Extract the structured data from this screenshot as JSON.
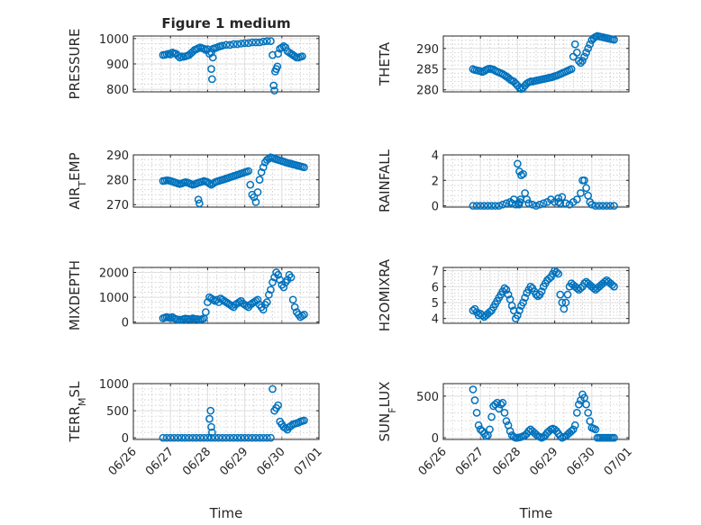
{
  "figure_title": "Figure 1 medium",
  "x_axis_label": "Time",
  "chart_data": [
    {
      "type": "scatter",
      "ylabel": "PRESSURE",
      "ylabel_sub": "",
      "ylabel_tail": "",
      "ylim": [
        790,
        1010
      ],
      "yticks": [
        800,
        900,
        1000
      ],
      "xlim": [
        0,
        5
      ],
      "xticks": [
        "06/26",
        "06/27",
        "06/28",
        "06/29",
        "06/30",
        "07/01"
      ],
      "grid": true,
      "x": [
        0.8,
        0.85,
        0.9,
        0.95,
        1.0,
        1.05,
        1.1,
        1.15,
        1.2,
        1.25,
        1.3,
        1.35,
        1.4,
        1.45,
        1.5,
        1.55,
        1.6,
        1.65,
        1.7,
        1.75,
        1.8,
        1.85,
        1.9,
        1.95,
        2.0,
        2.05,
        2.1,
        2.15,
        2.2,
        2.25,
        2.3,
        2.35,
        2.4,
        2.5,
        2.6,
        2.7,
        2.8,
        2.9,
        3.0,
        3.1,
        3.2,
        3.3,
        3.4,
        3.5,
        3.6,
        3.7,
        3.75,
        3.78,
        3.8,
        3.82,
        3.85,
        3.88,
        3.9,
        3.95,
        4.0,
        4.05,
        4.1,
        4.15,
        4.2,
        4.25,
        4.3,
        4.35,
        4.4,
        4.45,
        4.5,
        4.55,
        2.1,
        2.12,
        2.14
      ],
      "y": [
        935,
        936,
        938,
        940,
        937,
        945,
        942,
        940,
        932,
        925,
        930,
        928,
        930,
        932,
        935,
        942,
        948,
        955,
        958,
        962,
        965,
        962,
        960,
        955,
        958,
        940,
        945,
        960,
        962,
        965,
        968,
        970,
        972,
        975,
        975,
        978,
        978,
        980,
        982,
        982,
        985,
        985,
        985,
        988,
        990,
        990,
        935,
        815,
        795,
        870,
        880,
        890,
        940,
        960,
        965,
        970,
        965,
        950,
        945,
        940,
        935,
        930,
        925,
        925,
        928,
        930,
        880,
        840,
        925
      ],
      "title": "Figure 1 medium"
    },
    {
      "type": "scatter",
      "ylabel": "THETA",
      "ylabel_sub": "",
      "ylabel_tail": "",
      "ylim": [
        279.5,
        293
      ],
      "yticks": [
        280,
        285,
        290
      ],
      "xlim": [
        0,
        5
      ],
      "xticks": [
        "06/26",
        "06/27",
        "06/28",
        "06/29",
        "06/30",
        "07/01"
      ],
      "grid": true,
      "x": [
        0.8,
        0.85,
        0.9,
        0.95,
        1.0,
        1.05,
        1.1,
        1.15,
        1.2,
        1.25,
        1.3,
        1.35,
        1.4,
        1.45,
        1.5,
        1.55,
        1.6,
        1.65,
        1.7,
        1.75,
        1.8,
        1.85,
        1.9,
        1.95,
        2.0,
        2.05,
        2.1,
        2.15,
        2.2,
        2.25,
        2.3,
        2.35,
        2.4,
        2.45,
        2.5,
        2.55,
        2.6,
        2.65,
        2.7,
        2.75,
        2.8,
        2.85,
        2.9,
        2.95,
        3.0,
        3.05,
        3.1,
        3.15,
        3.2,
        3.25,
        3.3,
        3.35,
        3.4,
        3.45,
        3.5,
        3.55,
        3.6,
        3.65,
        3.7,
        3.75,
        3.8,
        3.85,
        3.9,
        3.95,
        4.0,
        4.05,
        4.1,
        4.15,
        4.2,
        4.25,
        4.3,
        4.35,
        4.4,
        4.45,
        4.5,
        4.55,
        4.6
      ],
      "y": [
        285,
        284.8,
        284.7,
        284.6,
        284.5,
        284.3,
        284.5,
        284.8,
        285,
        285.1,
        285,
        284.9,
        284.6,
        284.4,
        284.2,
        284,
        283.8,
        283.5,
        283.2,
        282.9,
        282.5,
        282.2,
        282,
        281.5,
        281,
        280.5,
        280.2,
        280.5,
        281,
        281.5,
        281.8,
        282,
        282,
        282.1,
        282.2,
        282.3,
        282.4,
        282.5,
        282.6,
        282.7,
        282.8,
        282.9,
        283,
        283.1,
        283.3,
        283.4,
        283.6,
        283.8,
        284,
        284.2,
        284.4,
        284.6,
        284.8,
        285,
        288,
        291,
        289,
        287,
        286.5,
        287,
        288,
        289,
        290,
        291,
        292,
        292.5,
        292.8,
        293,
        292.9,
        292.8,
        292.7,
        292.6,
        292.5,
        292.4,
        292.3,
        292.2,
        292.1
      ],
      "title": ""
    },
    {
      "type": "scatter",
      "ylabel": "AIR",
      "ylabel_sub": "T",
      "ylabel_tail": "EMP",
      "ylim": [
        269,
        290
      ],
      "yticks": [
        270,
        280,
        290
      ],
      "xlim": [
        0,
        5
      ],
      "xticks": [
        "06/26",
        "06/27",
        "06/28",
        "06/29",
        "06/30",
        "07/01"
      ],
      "grid": true,
      "x": [
        0.8,
        0.85,
        0.9,
        0.95,
        1.0,
        1.05,
        1.1,
        1.15,
        1.2,
        1.25,
        1.3,
        1.35,
        1.4,
        1.45,
        1.5,
        1.55,
        1.6,
        1.65,
        1.7,
        1.75,
        1.8,
        1.85,
        1.9,
        1.95,
        2.0,
        2.05,
        2.1,
        2.15,
        2.2,
        2.25,
        2.3,
        2.35,
        2.4,
        2.45,
        2.5,
        2.55,
        2.6,
        2.65,
        2.7,
        2.75,
        2.8,
        2.85,
        2.9,
        2.95,
        3.0,
        3.05,
        3.1,
        3.15,
        3.2,
        3.25,
        3.3,
        3.35,
        3.4,
        3.45,
        3.5,
        3.55,
        3.6,
        3.65,
        3.7,
        3.75,
        3.8,
        3.85,
        3.9,
        3.95,
        4.0,
        4.05,
        4.1,
        4.15,
        4.2,
        4.25,
        4.3,
        4.35,
        4.4,
        4.45,
        4.5,
        4.55,
        4.6,
        1.75,
        1.78
      ],
      "y": [
        279.5,
        279.6,
        279.8,
        279.7,
        279.5,
        279.3,
        279,
        278.8,
        278.5,
        278.3,
        278.5,
        278.8,
        279,
        278.9,
        278.6,
        278.3,
        278,
        278.2,
        278.5,
        278.8,
        279,
        279.2,
        279.5,
        279.3,
        279,
        278.5,
        278,
        278.5,
        279,
        279.3,
        279.5,
        279.8,
        280,
        280.2,
        280.5,
        280.7,
        281,
        281.2,
        281.5,
        281.7,
        282,
        282.2,
        282.5,
        282.7,
        283,
        283.2,
        283.5,
        278,
        274,
        273,
        271,
        275,
        280,
        283,
        285,
        287,
        288,
        288.5,
        289,
        288.8,
        288.5,
        288.2,
        288,
        287.8,
        287.5,
        287.3,
        287,
        286.8,
        286.6,
        286.4,
        286.2,
        286,
        285.8,
        285.6,
        285.4,
        285.2,
        285,
        272,
        270.5
      ],
      "title": ""
    },
    {
      "type": "scatter",
      "ylabel": "RAINFALL",
      "ylabel_sub": "",
      "ylabel_tail": "",
      "ylim": [
        -0.1,
        4
      ],
      "yticks": [
        0,
        2,
        4
      ],
      "xlim": [
        0,
        5
      ],
      "xticks": [
        "06/26",
        "06/27",
        "06/28",
        "06/29",
        "06/30",
        "07/01"
      ],
      "grid": true,
      "x": [
        0.8,
        0.9,
        1.0,
        1.1,
        1.2,
        1.3,
        1.4,
        1.5,
        1.6,
        1.7,
        1.8,
        1.9,
        2.0,
        2.05,
        2.1,
        2.15,
        2.2,
        2.25,
        2.3,
        2.4,
        2.5,
        2.6,
        2.7,
        2.8,
        2.9,
        3.0,
        3.1,
        3.2,
        3.3,
        3.4,
        3.5,
        3.6,
        3.7,
        3.75,
        3.8,
        3.85,
        3.9,
        3.95,
        4.0,
        4.1,
        4.2,
        4.3,
        4.4,
        4.5,
        4.6,
        2.02,
        2.04,
        2.06,
        2.08,
        1.85,
        1.95,
        3.1,
        3.15
      ],
      "y": [
        0,
        0,
        0,
        0,
        0,
        0,
        0,
        0,
        0.1,
        0.2,
        0.3,
        0.5,
        3.3,
        2.7,
        2.4,
        2.5,
        1.0,
        0.5,
        0.2,
        0.1,
        0,
        0.1,
        0.2,
        0.3,
        0.5,
        0.3,
        0.6,
        0.7,
        0.2,
        0.1,
        0.3,
        0.5,
        1.0,
        2.0,
        2.0,
        1.4,
        0.8,
        0.3,
        0.1,
        0,
        0,
        0,
        0,
        0,
        0,
        0.2,
        0.1,
        0.3,
        0.5,
        0.2,
        0.1,
        0.3,
        0.2
      ],
      "title": ""
    },
    {
      "type": "scatter",
      "ylabel": "MIXDEPTH",
      "ylabel_sub": "",
      "ylabel_tail": "",
      "ylim": [
        -50,
        2200
      ],
      "yticks": [
        0,
        1000,
        2000
      ],
      "xlim": [
        0,
        5
      ],
      "xticks": [
        "06/26",
        "06/27",
        "06/28",
        "06/29",
        "06/30",
        "07/01"
      ],
      "grid": true,
      "x": [
        0.8,
        0.85,
        0.9,
        0.95,
        1.0,
        1.05,
        1.1,
        1.15,
        1.2,
        1.25,
        1.3,
        1.35,
        1.4,
        1.45,
        1.5,
        1.55,
        1.6,
        1.65,
        1.7,
        1.75,
        1.8,
        1.85,
        1.9,
        1.95,
        2.0,
        2.05,
        2.1,
        2.15,
        2.2,
        2.25,
        2.3,
        2.35,
        2.4,
        2.45,
        2.5,
        2.55,
        2.6,
        2.65,
        2.7,
        2.75,
        2.8,
        2.85,
        2.9,
        2.95,
        3.0,
        3.05,
        3.1,
        3.15,
        3.2,
        3.25,
        3.3,
        3.35,
        3.4,
        3.45,
        3.5,
        3.55,
        3.6,
        3.65,
        3.7,
        3.75,
        3.8,
        3.85,
        3.9,
        3.95,
        4.0,
        4.05,
        4.1,
        4.15,
        4.2,
        4.25,
        4.3,
        4.35,
        4.4,
        4.45,
        4.5,
        4.55,
        4.6
      ],
      "y": [
        150,
        180,
        200,
        180,
        160,
        200,
        150,
        120,
        100,
        80,
        100,
        120,
        140,
        130,
        120,
        110,
        150,
        130,
        120,
        110,
        100,
        120,
        150,
        400,
        800,
        1000,
        950,
        900,
        850,
        900,
        800,
        950,
        900,
        850,
        800,
        750,
        700,
        650,
        600,
        700,
        750,
        800,
        850,
        750,
        700,
        650,
        600,
        700,
        750,
        800,
        850,
        900,
        700,
        600,
        500,
        700,
        800,
        1100,
        1300,
        1600,
        1800,
        2000,
        1900,
        1700,
        1500,
        1400,
        1600,
        1700,
        1900,
        1800,
        900,
        600,
        400,
        300,
        200,
        250,
        300
      ],
      "title": ""
    },
    {
      "type": "scatter",
      "ylabel": "H2OMIXRA",
      "ylabel_sub": "",
      "ylabel_tail": "",
      "ylim": [
        3.7,
        7.2
      ],
      "yticks": [
        4,
        5,
        6,
        7
      ],
      "xlim": [
        0,
        5
      ],
      "xticks": [
        "06/26",
        "06/27",
        "06/28",
        "06/29",
        "06/30",
        "07/01"
      ],
      "grid": true,
      "x": [
        0.8,
        0.85,
        0.9,
        0.95,
        1.0,
        1.05,
        1.1,
        1.15,
        1.2,
        1.25,
        1.3,
        1.35,
        1.4,
        1.45,
        1.5,
        1.55,
        1.6,
        1.65,
        1.7,
        1.75,
        1.8,
        1.85,
        1.9,
        1.95,
        2.0,
        2.05,
        2.1,
        2.15,
        2.2,
        2.25,
        2.3,
        2.35,
        2.4,
        2.45,
        2.5,
        2.55,
        2.6,
        2.65,
        2.7,
        2.75,
        2.8,
        2.85,
        2.9,
        2.95,
        3.0,
        3.05,
        3.1,
        3.15,
        3.2,
        3.25,
        3.3,
        3.35,
        3.4,
        3.45,
        3.5,
        3.55,
        3.6,
        3.65,
        3.7,
        3.75,
        3.8,
        3.85,
        3.9,
        3.95,
        4.0,
        4.05,
        4.1,
        4.15,
        4.2,
        4.25,
        4.3,
        4.35,
        4.4,
        4.45,
        4.5,
        4.55,
        4.6
      ],
      "y": [
        4.5,
        4.6,
        4.4,
        4.2,
        4.3,
        4.2,
        4.1,
        4.2,
        4.3,
        4.4,
        4.5,
        4.7,
        4.9,
        5.1,
        5.3,
        5.5,
        5.7,
        5.9,
        5.8,
        5.5,
        5.2,
        4.8,
        4.5,
        4.0,
        4.2,
        4.5,
        4.8,
        5.0,
        5.3,
        5.6,
        5.8,
        6.0,
        5.9,
        5.7,
        5.5,
        5.4,
        5.5,
        5.7,
        6.0,
        6.2,
        6.4,
        6.5,
        6.6,
        6.8,
        7.0,
        6.9,
        6.8,
        5.5,
        5.0,
        4.6,
        5.0,
        5.5,
        6.0,
        6.2,
        6.1,
        6.0,
        5.9,
        5.8,
        5.9,
        6.0,
        6.2,
        6.3,
        6.2,
        6.1,
        6.0,
        5.9,
        5.8,
        5.9,
        6.0,
        6.1,
        6.2,
        6.3,
        6.4,
        6.3,
        6.2,
        6.1,
        6.0
      ],
      "title": ""
    },
    {
      "type": "scatter",
      "ylabel": "TERR",
      "ylabel_sub": "M",
      "ylabel_tail": "SL",
      "ylim": [
        -30,
        1000
      ],
      "yticks": [
        0,
        500,
        1000
      ],
      "xlim": [
        0,
        5
      ],
      "xticks": [
        "06/26",
        "06/27",
        "06/28",
        "06/29",
        "06/30",
        "07/01"
      ],
      "grid": true,
      "x": [
        0.8,
        0.9,
        1.0,
        1.1,
        1.2,
        1.3,
        1.4,
        1.5,
        1.6,
        1.7,
        1.8,
        1.9,
        2.0,
        2.1,
        2.2,
        2.3,
        2.4,
        2.5,
        2.6,
        2.7,
        2.8,
        2.9,
        3.0,
        3.1,
        3.2,
        3.3,
        3.4,
        3.5,
        3.6,
        3.7,
        3.75,
        3.8,
        3.85,
        3.9,
        3.95,
        4.0,
        4.05,
        4.1,
        4.15,
        4.2,
        4.25,
        4.3,
        4.35,
        4.4,
        4.45,
        4.5,
        4.55,
        4.6,
        2.05,
        2.08,
        2.1,
        2.12
      ],
      "y": [
        0,
        0,
        0,
        0,
        0,
        0,
        0,
        0,
        0,
        0,
        0,
        0,
        0,
        0,
        0,
        0,
        0,
        0,
        0,
        0,
        0,
        0,
        0,
        0,
        0,
        0,
        0,
        0,
        0,
        0,
        900,
        500,
        550,
        600,
        300,
        250,
        200,
        180,
        150,
        200,
        220,
        250,
        260,
        270,
        280,
        300,
        310,
        320,
        350,
        500,
        200,
        100
      ],
      "title": ""
    },
    {
      "type": "scatter",
      "ylabel": "SUN",
      "ylabel_sub": "F",
      "ylabel_tail": "LUX",
      "ylim": [
        -20,
        650
      ],
      "yticks": [
        0,
        500
      ],
      "xlim": [
        0,
        5
      ],
      "xticks": [
        "06/26",
        "06/27",
        "06/28",
        "06/29",
        "06/30",
        "07/01"
      ],
      "grid": true,
      "x": [
        0.8,
        0.85,
        0.9,
        0.95,
        1.0,
        1.05,
        1.1,
        1.15,
        1.2,
        1.25,
        1.3,
        1.35,
        1.4,
        1.45,
        1.5,
        1.55,
        1.6,
        1.65,
        1.7,
        1.75,
        1.8,
        1.85,
        1.9,
        1.95,
        2.0,
        2.05,
        2.1,
        2.15,
        2.2,
        2.25,
        2.3,
        2.35,
        2.4,
        2.45,
        2.5,
        2.55,
        2.6,
        2.65,
        2.7,
        2.75,
        2.8,
        2.85,
        2.9,
        2.95,
        3.0,
        3.05,
        3.1,
        3.15,
        3.2,
        3.25,
        3.3,
        3.35,
        3.4,
        3.45,
        3.5,
        3.55,
        3.6,
        3.65,
        3.7,
        3.75,
        3.8,
        3.85,
        3.9,
        3.95,
        4.0,
        4.05,
        4.1,
        4.15,
        4.2,
        4.25,
        4.3,
        4.35,
        4.4,
        4.45,
        4.5,
        4.55,
        4.6
      ],
      "y": [
        580,
        450,
        300,
        150,
        100,
        80,
        50,
        20,
        30,
        100,
        250,
        380,
        400,
        420,
        350,
        400,
        420,
        300,
        200,
        150,
        80,
        30,
        10,
        0,
        0,
        5,
        10,
        20,
        30,
        50,
        80,
        100,
        80,
        60,
        40,
        20,
        10,
        0,
        10,
        30,
        60,
        80,
        100,
        110,
        100,
        80,
        50,
        20,
        0,
        10,
        20,
        40,
        60,
        80,
        100,
        150,
        300,
        400,
        450,
        520,
        480,
        400,
        300,
        200,
        120,
        110,
        100,
        0,
        0,
        0,
        0,
        0,
        0,
        0,
        0,
        0,
        0
      ],
      "title": ""
    }
  ]
}
